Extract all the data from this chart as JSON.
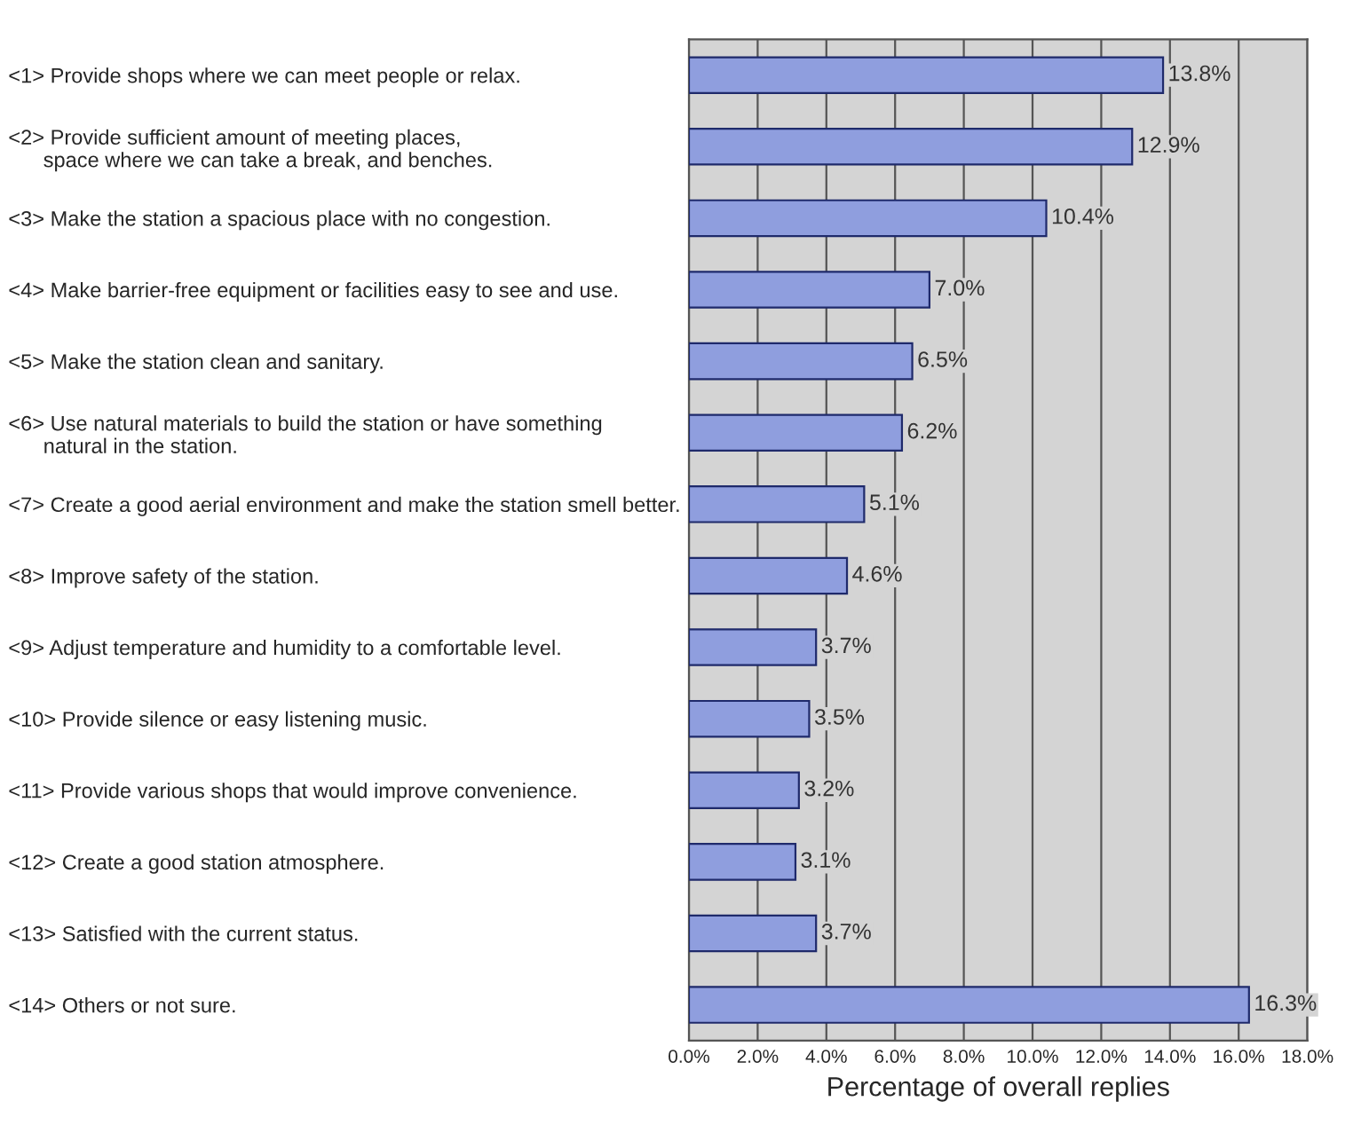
{
  "chart_data": {
    "type": "bar",
    "orientation": "horizontal",
    "xlabel": "Percentage of overall replies",
    "categories": [
      "<1> Provide shops where we can meet people or relax.",
      "<2> Provide sufficient amount of meeting places,\n      space where we can take a break, and benches.",
      "<3> Make the station a spacious place with no congestion.",
      "<4> Make barrier-free equipment or facilities easy to see and use.",
      "<5> Make the station clean and sanitary.",
      "<6> Use natural materials to build the station or have something\n      natural in the station.",
      "<7> Create a good aerial environment and make the station smell better.",
      "<8> Improve safety of the station.",
      "<9> Adjust temperature and humidity to a comfortable level.",
      "<10> Provide silence or easy listening music.",
      "<11> Provide various shops that would improve convenience.",
      "<12> Create a good station atmosphere.",
      "<13> Satisfied with the current status.",
      "<14> Others or not sure."
    ],
    "values": [
      13.8,
      12.9,
      10.4,
      7.0,
      6.5,
      6.2,
      5.1,
      4.6,
      3.7,
      3.5,
      3.2,
      3.1,
      3.7,
      16.3
    ],
    "value_labels": [
      "13.8%",
      "12.9%",
      "10.4%",
      "7.0%",
      "6.5%",
      "6.2%",
      "5.1%",
      "4.6%",
      "3.7%",
      "3.5%",
      "3.2%",
      "3.1%",
      "3.7%",
      "16.3%"
    ],
    "color": "#8f9ede",
    "xlim": [
      0,
      18
    ],
    "xticks": [
      {
        "value": 0,
        "label": "0.0%"
      },
      {
        "value": 2,
        "label": "2.0%"
      },
      {
        "value": 4,
        "label": "4.0%"
      },
      {
        "value": 6,
        "label": "6.0%"
      },
      {
        "value": 8,
        "label": "8.0%"
      },
      {
        "value": 10,
        "label": "10.0%"
      },
      {
        "value": 12,
        "label": "12.0%"
      },
      {
        "value": 14,
        "label": "14.0%"
      },
      {
        "value": 16,
        "label": "16.0%"
      },
      {
        "value": 18,
        "label": "18.0%"
      }
    ],
    "grid": "x",
    "legend": false
  }
}
